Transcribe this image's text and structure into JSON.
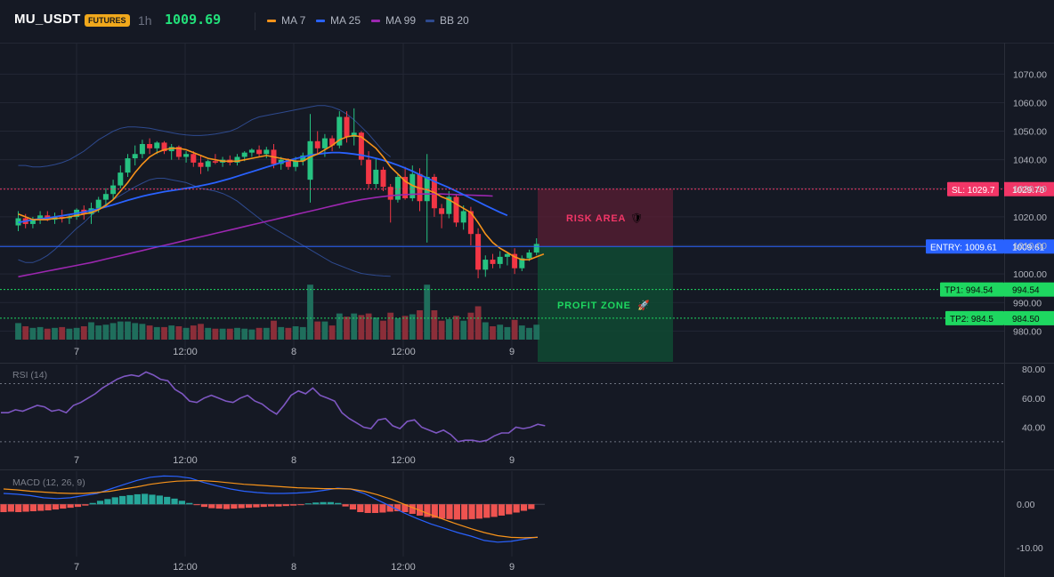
{
  "header": {
    "symbol": "MU_USDT",
    "badge": "FUTURES",
    "timeframe": "1h",
    "last_price": "1009.69",
    "legend": [
      {
        "label": "MA 7",
        "color": "#f7931a"
      },
      {
        "label": "MA 25",
        "color": "#2962ff"
      },
      {
        "label": "MA 99",
        "color": "#9c27b0"
      },
      {
        "label": "BB 20",
        "color": "#2e4a8f"
      }
    ]
  },
  "colors": {
    "up": "#26c281",
    "down": "#f23645",
    "volume_up": "#1f6e5c",
    "volume_down": "#8b2e39",
    "background": "#151924",
    "grid": "#232734"
  },
  "chart_data": [
    {
      "type": "candlestick",
      "title": "MU_USDT 1h",
      "x_ticks": [
        "7",
        "12:00",
        "8",
        "12:00",
        "9"
      ],
      "y_ticks": [
        "1070.00",
        "1060.00",
        "1050.00",
        "1040.00",
        "1030.00",
        "1020.00",
        "1010.00",
        "1000.00",
        "990.00",
        "980.00"
      ],
      "ylim": [
        977,
        1081
      ],
      "candles": [
        {
          "o": 1017.0,
          "h": 1022.0,
          "l": 1015.0,
          "c": 1019.5
        },
        {
          "o": 1019.5,
          "h": 1021.0,
          "l": 1016.0,
          "c": 1017.5
        },
        {
          "o": 1017.5,
          "h": 1020.0,
          "l": 1016.0,
          "c": 1019.0
        },
        {
          "o": 1019.0,
          "h": 1022.0,
          "l": 1017.5,
          "c": 1020.5
        },
        {
          "o": 1020.5,
          "h": 1022.0,
          "l": 1018.5,
          "c": 1019.0
        },
        {
          "o": 1019.0,
          "h": 1021.5,
          "l": 1017.5,
          "c": 1020.0
        },
        {
          "o": 1020.0,
          "h": 1022.5,
          "l": 1018.0,
          "c": 1019.5
        },
        {
          "o": 1019.5,
          "h": 1021.0,
          "l": 1017.5,
          "c": 1020.0
        },
        {
          "o": 1020.0,
          "h": 1023.0,
          "l": 1019.0,
          "c": 1022.5
        },
        {
          "o": 1022.5,
          "h": 1024.0,
          "l": 1019.0,
          "c": 1021.0
        },
        {
          "o": 1021.0,
          "h": 1025.0,
          "l": 1017.5,
          "c": 1023.0
        },
        {
          "o": 1023.0,
          "h": 1027.0,
          "l": 1021.5,
          "c": 1026.0
        },
        {
          "o": 1026.0,
          "h": 1030.0,
          "l": 1024.0,
          "c": 1028.0
        },
        {
          "o": 1028.0,
          "h": 1033.0,
          "l": 1026.0,
          "c": 1031.0
        },
        {
          "o": 1031.0,
          "h": 1038.0,
          "l": 1030.0,
          "c": 1035.5
        },
        {
          "o": 1035.5,
          "h": 1042.0,
          "l": 1034.0,
          "c": 1040.5
        },
        {
          "o": 1040.5,
          "h": 1045.0,
          "l": 1038.0,
          "c": 1042.0
        },
        {
          "o": 1042.0,
          "h": 1047.0,
          "l": 1040.5,
          "c": 1045.5
        },
        {
          "o": 1045.5,
          "h": 1047.5,
          "l": 1042.0,
          "c": 1044.0
        },
        {
          "o": 1044.0,
          "h": 1046.5,
          "l": 1042.0,
          "c": 1046.0
        },
        {
          "o": 1046.0,
          "h": 1046.5,
          "l": 1042.0,
          "c": 1043.0
        },
        {
          "o": 1043.0,
          "h": 1045.5,
          "l": 1040.0,
          "c": 1044.5
        },
        {
          "o": 1044.5,
          "h": 1045.0,
          "l": 1040.0,
          "c": 1041.0
        },
        {
          "o": 1041.0,
          "h": 1043.0,
          "l": 1039.0,
          "c": 1042.0
        },
        {
          "o": 1042.0,
          "h": 1043.0,
          "l": 1037.5,
          "c": 1039.0
        },
        {
          "o": 1039.0,
          "h": 1041.5,
          "l": 1035.0,
          "c": 1037.5
        },
        {
          "o": 1037.5,
          "h": 1040.0,
          "l": 1036.0,
          "c": 1039.5
        },
        {
          "o": 1039.5,
          "h": 1042.0,
          "l": 1038.5,
          "c": 1039.0
        },
        {
          "o": 1039.0,
          "h": 1041.0,
          "l": 1037.5,
          "c": 1040.0
        },
        {
          "o": 1040.0,
          "h": 1041.5,
          "l": 1038.0,
          "c": 1039.0
        },
        {
          "o": 1039.0,
          "h": 1042.0,
          "l": 1038.0,
          "c": 1041.0
        },
        {
          "o": 1041.0,
          "h": 1043.0,
          "l": 1039.5,
          "c": 1042.5
        },
        {
          "o": 1042.5,
          "h": 1044.0,
          "l": 1041.0,
          "c": 1043.5
        },
        {
          "o": 1043.5,
          "h": 1045.0,
          "l": 1041.0,
          "c": 1042.0
        },
        {
          "o": 1042.0,
          "h": 1044.5,
          "l": 1040.5,
          "c": 1043.5
        },
        {
          "o": 1043.5,
          "h": 1045.5,
          "l": 1037.0,
          "c": 1038.5
        },
        {
          "o": 1038.5,
          "h": 1041.0,
          "l": 1036.5,
          "c": 1040.0
        },
        {
          "o": 1040.0,
          "h": 1040.5,
          "l": 1036.5,
          "c": 1037.5
        },
        {
          "o": 1037.5,
          "h": 1041.0,
          "l": 1036.0,
          "c": 1039.5
        },
        {
          "o": 1039.5,
          "h": 1042.5,
          "l": 1038.0,
          "c": 1041.5
        },
        {
          "o": 1033.0,
          "h": 1056.0,
          "l": 1025.0,
          "c": 1046.5
        },
        {
          "o": 1046.5,
          "h": 1050.0,
          "l": 1042.0,
          "c": 1044.0
        },
        {
          "o": 1044.0,
          "h": 1049.0,
          "l": 1041.0,
          "c": 1047.5
        },
        {
          "o": 1047.5,
          "h": 1048.5,
          "l": 1043.0,
          "c": 1045.0
        },
        {
          "o": 1045.0,
          "h": 1057.0,
          "l": 1044.0,
          "c": 1055.0
        },
        {
          "o": 1055.0,
          "h": 1057.0,
          "l": 1046.0,
          "c": 1048.0
        },
        {
          "o": 1048.0,
          "h": 1058.0,
          "l": 1045.0,
          "c": 1049.5
        },
        {
          "o": 1049.5,
          "h": 1050.0,
          "l": 1038.0,
          "c": 1040.0
        },
        {
          "o": 1040.0,
          "h": 1043.0,
          "l": 1030.0,
          "c": 1031.5
        },
        {
          "o": 1031.5,
          "h": 1040.5,
          "l": 1030.0,
          "c": 1036.5
        },
        {
          "o": 1036.5,
          "h": 1037.5,
          "l": 1029.0,
          "c": 1030.5
        },
        {
          "o": 1030.5,
          "h": 1031.5,
          "l": 1018.0,
          "c": 1026.0
        },
        {
          "o": 1026.0,
          "h": 1035.0,
          "l": 1025.0,
          "c": 1034.0
        },
        {
          "o": 1034.0,
          "h": 1037.5,
          "l": 1026.0,
          "c": 1026.5
        },
        {
          "o": 1026.5,
          "h": 1038.0,
          "l": 1025.5,
          "c": 1035.0
        },
        {
          "o": 1035.0,
          "h": 1037.0,
          "l": 1022.0,
          "c": 1025.5
        },
        {
          "o": 1025.5,
          "h": 1042.0,
          "l": 1011.0,
          "c": 1034.0
        },
        {
          "o": 1034.0,
          "h": 1035.0,
          "l": 1020.0,
          "c": 1023.0
        },
        {
          "o": 1023.0,
          "h": 1024.5,
          "l": 1016.0,
          "c": 1021.0
        },
        {
          "o": 1021.0,
          "h": 1029.0,
          "l": 1019.5,
          "c": 1027.0
        },
        {
          "o": 1027.0,
          "h": 1028.0,
          "l": 1016.5,
          "c": 1018.0
        },
        {
          "o": 1018.0,
          "h": 1024.0,
          "l": 1015.5,
          "c": 1022.0
        },
        {
          "o": 1022.0,
          "h": 1023.5,
          "l": 1010.0,
          "c": 1014.0
        },
        {
          "o": 1014.0,
          "h": 1016.0,
          "l": 998.5,
          "c": 1001.5
        },
        {
          "o": 1001.5,
          "h": 1006.5,
          "l": 999.0,
          "c": 1005.0
        },
        {
          "o": 1005.0,
          "h": 1007.0,
          "l": 1002.0,
          "c": 1003.5
        },
        {
          "o": 1003.5,
          "h": 1008.0,
          "l": 1002.0,
          "c": 1006.0
        },
        {
          "o": 1006.0,
          "h": 1007.5,
          "l": 1003.0,
          "c": 1007.0
        },
        {
          "o": 1007.0,
          "h": 1009.0,
          "l": 1000.0,
          "c": 1002.0
        },
        {
          "o": 1002.0,
          "h": 1006.5,
          "l": 1001.0,
          "c": 1005.5
        },
        {
          "o": 1005.5,
          "h": 1008.5,
          "l": 1004.5,
          "c": 1007.5
        },
        {
          "o": 1007.5,
          "h": 1012.5,
          "l": 1006.5,
          "c": 1010.5
        }
      ],
      "ma7": [
        1021,
        1020,
        1019,
        1019,
        1019,
        1019.5,
        1019.5,
        1020,
        1020.5,
        1021,
        1021.5,
        1022.5,
        1024,
        1026,
        1029,
        1032,
        1035.5,
        1038.5,
        1041,
        1042.5,
        1043.5,
        1044,
        1044,
        1043.5,
        1042.5,
        1041.5,
        1040.5,
        1040,
        1039.5,
        1039.5,
        1039.5,
        1040,
        1040.5,
        1041,
        1041.5,
        1041,
        1040.5,
        1040,
        1039.5,
        1039.5,
        1041,
        1042,
        1043.5,
        1045,
        1047,
        1048,
        1048.5,
        1048,
        1046,
        1044,
        1041,
        1037.5,
        1035,
        1032.5,
        1031,
        1030,
        1029.5,
        1028.5,
        1027,
        1026,
        1024.5,
        1023,
        1021.5,
        1018,
        1014,
        1011,
        1009,
        1007.5,
        1006,
        1005,
        1005,
        1006,
        1007
      ],
      "ma25": [
        1018,
        1018.5,
        1019,
        1019.3,
        1019.6,
        1020,
        1020.4,
        1020.8,
        1021.2,
        1021.7,
        1022.2,
        1022.8,
        1023.5,
        1024.2,
        1025,
        1025.8,
        1026.5,
        1027.2,
        1027.8,
        1028.3,
        1028.8,
        1029.2,
        1029.6,
        1030,
        1030.4,
        1030.9,
        1031.4,
        1032,
        1032.7,
        1033.4,
        1034.2,
        1035,
        1035.8,
        1036.6,
        1037.4,
        1038.2,
        1039,
        1039.7,
        1040.4,
        1041,
        1041.6,
        1042,
        1042.3,
        1042.5,
        1042.5,
        1042.3,
        1042,
        1041.6,
        1041.1,
        1040.5,
        1039.8,
        1039,
        1038.1,
        1037.1,
        1036,
        1034.8,
        1033.6,
        1032.4,
        1031.3,
        1030.2,
        1029,
        1027.8,
        1026.5,
        1025.3,
        1024,
        1022.8,
        1021.6,
        1020.5
      ],
      "ma99": [
        999,
        999.5,
        1000,
        1000.5,
        1001,
        1001.5,
        1002,
        1002.5,
        1003,
        1003.5,
        1004,
        1004.6,
        1005.2,
        1005.8,
        1006.4,
        1007,
        1007.6,
        1008.2,
        1008.8,
        1009.4,
        1010,
        1010.6,
        1011.2,
        1011.8,
        1012.4,
        1013,
        1013.6,
        1014.2,
        1014.8,
        1015.4,
        1016,
        1016.6,
        1017.2,
        1017.8,
        1018.4,
        1019,
        1019.6,
        1020.2,
        1020.8,
        1021.4,
        1022,
        1022.6,
        1023.2,
        1023.8,
        1024.4,
        1025,
        1025.5,
        1026,
        1026.4,
        1026.8,
        1027.1,
        1027.4,
        1027.6,
        1027.8,
        1027.9,
        1028,
        1028,
        1028,
        1028,
        1027.9,
        1027.8,
        1027.7,
        1027.6,
        1027.5,
        1027.4,
        1027.3
      ],
      "bb_upper": [
        1038,
        1038,
        1037.5,
        1037.5,
        1037.8,
        1038.3,
        1039,
        1040,
        1041.5,
        1043,
        1045,
        1047,
        1048.5,
        1050,
        1051,
        1051.5,
        1051.5,
        1051.3,
        1051,
        1050.5,
        1050,
        1049.5,
        1049,
        1048.7,
        1048.5,
        1048.5,
        1048.7,
        1049,
        1049.5,
        1050,
        1051,
        1052.5,
        1054,
        1055,
        1055.5,
        1056,
        1056.5,
        1057,
        1057.5,
        1058,
        1058.5,
        1059,
        1059,
        1058.5,
        1057.5,
        1056,
        1054,
        1051.5,
        1049,
        1046,
        1043,
        1041
      ],
      "bb_lower": [
        1005,
        1004,
        1004,
        1005,
        1006.5,
        1008.5,
        1011,
        1013.5,
        1016,
        1018,
        1020.5,
        1022.5,
        1024.5,
        1026,
        1027.5,
        1029,
        1030.5,
        1031.8,
        1033,
        1033.5,
        1033.5,
        1033,
        1032.5,
        1032,
        1031,
        1030,
        1029.5,
        1029,
        1028.2,
        1027,
        1025.5,
        1023.5,
        1021.5,
        1019.5,
        1017.5,
        1016,
        1014.5,
        1013,
        1011.5,
        1010,
        1008.5,
        1007,
        1005.5,
        1004,
        1003,
        1002,
        1001,
        1000.2,
        999.8,
        999.5,
        999.3,
        999.2
      ],
      "volume_ticks": []
    },
    {
      "type": "line",
      "title": "RSI (14)",
      "x_ticks": [
        "7",
        "12:00",
        "8",
        "12:00",
        "9"
      ],
      "y_ticks": [
        "80.00",
        "60.00",
        "40.00"
      ],
      "ylim": [
        25,
        85
      ],
      "levels": [
        70,
        30
      ],
      "series": [
        {
          "name": "RSI (14)",
          "color": "#7e57c2",
          "values": [
            50,
            50,
            52,
            51,
            53,
            55,
            54,
            51,
            52,
            50,
            55,
            57,
            60,
            63,
            67,
            70,
            73,
            75,
            76,
            75,
            78,
            76,
            73,
            72,
            66,
            63,
            58,
            57,
            60,
            62,
            60,
            58,
            57,
            60,
            62,
            58,
            56,
            52,
            49,
            55,
            62,
            65,
            63,
            67,
            62,
            60,
            58,
            50,
            46,
            43,
            40,
            39,
            45,
            46,
            41,
            39,
            44,
            45,
            40,
            38,
            36,
            38,
            35,
            30,
            31,
            31,
            30,
            31,
            34,
            36,
            36,
            40,
            39,
            40,
            42,
            41
          ]
        }
      ]
    },
    {
      "type": "bar",
      "title": "MACD (12, 26, 9)",
      "x_ticks": [
        "7",
        "12:00",
        "8",
        "12:00",
        "9"
      ],
      "y_ticks": [
        "0.00",
        "-10.00"
      ],
      "ylim": [
        -12,
        8
      ],
      "histogram": [
        -1.8,
        -1.7,
        -1.8,
        -1.7,
        -1.6,
        -1.5,
        -1.4,
        -1.2,
        -1.0,
        -0.8,
        -0.6,
        -0.3,
        0.3,
        0.8,
        1.2,
        1.6,
        1.9,
        2.1,
        2.3,
        2.4,
        2.2,
        2.0,
        1.7,
        1.3,
        0.8,
        0.3,
        -0.2,
        -0.6,
        -0.9,
        -1.0,
        -1.1,
        -1.0,
        -0.9,
        -0.8,
        -0.7,
        -0.6,
        -0.5,
        -0.5,
        -0.4,
        -0.3,
        -0.2,
        0.2,
        0.4,
        0.5,
        0.5,
        0.3,
        -0.5,
        -1.2,
        -1.8,
        -2.0,
        -2.0,
        -1.9,
        -1.7,
        -1.6,
        -1.8,
        -2.2,
        -2.6,
        -2.9,
        -3.1,
        -3.3,
        -3.4,
        -3.5,
        -3.5,
        -3.4,
        -3.3,
        -3.1,
        -2.9,
        -2.6,
        -2.3,
        -1.9,
        -1.5,
        -1.1
      ],
      "series": [
        {
          "name": "MACD",
          "color": "#2962ff",
          "values": [
            2.5,
            2.3,
            2.0,
            1.5,
            1.3,
            1.5,
            2.0,
            2.5,
            3.5,
            4.5,
            5.5,
            6.2,
            6.5,
            6.4,
            6.0,
            5.0,
            4.2,
            3.5,
            3.0,
            2.7,
            2.5,
            2.5,
            2.6,
            2.8,
            3.2,
            3.7,
            3.5,
            2.5,
            1.0,
            -0.5,
            -2.0,
            -3.3,
            -4.5,
            -5.5,
            -6.5,
            -7.3,
            -8.3,
            -8.7,
            -8.5,
            -8.0,
            -7.5
          ]
        },
        {
          "name": "Signal",
          "color": "#f7931a",
          "values": [
            3.5,
            3.3,
            3.0,
            2.8,
            2.6,
            2.5,
            2.5,
            2.7,
            3.0,
            3.5,
            4.0,
            4.6,
            5.0,
            5.3,
            5.4,
            5.4,
            5.2,
            4.9,
            4.6,
            4.4,
            4.2,
            4.0,
            3.8,
            3.7,
            3.6,
            3.6,
            3.5,
            3.0,
            2.2,
            1.2,
            0.0,
            -1.2,
            -2.4,
            -3.5,
            -4.6,
            -5.6,
            -6.5,
            -7.2,
            -7.6,
            -7.7,
            -7.6
          ]
        }
      ]
    }
  ],
  "annotations": {
    "risk_label": "RISK AREA",
    "risk_icon": "🛡",
    "profit_label": "PROFIT ZONE",
    "profit_icon": "🚀",
    "sl_tag": "SL: 1029.7",
    "sl_value": "1029.70",
    "entry_tag": "ENTRY: 1009.61",
    "entry_value": "1009.61",
    "tp1_tag": "TP1: 994.54",
    "tp1_value": "994.54",
    "tp2_tag": "TP2: 984.5",
    "tp2_value": "984.50",
    "sl_price": 1029.7,
    "entry_price": 1009.61,
    "tp1_price": 994.54,
    "tp2_price": 984.5,
    "sl_color": "#f23667",
    "entry_color": "#2962ff",
    "tp_color": "#1ed760"
  }
}
